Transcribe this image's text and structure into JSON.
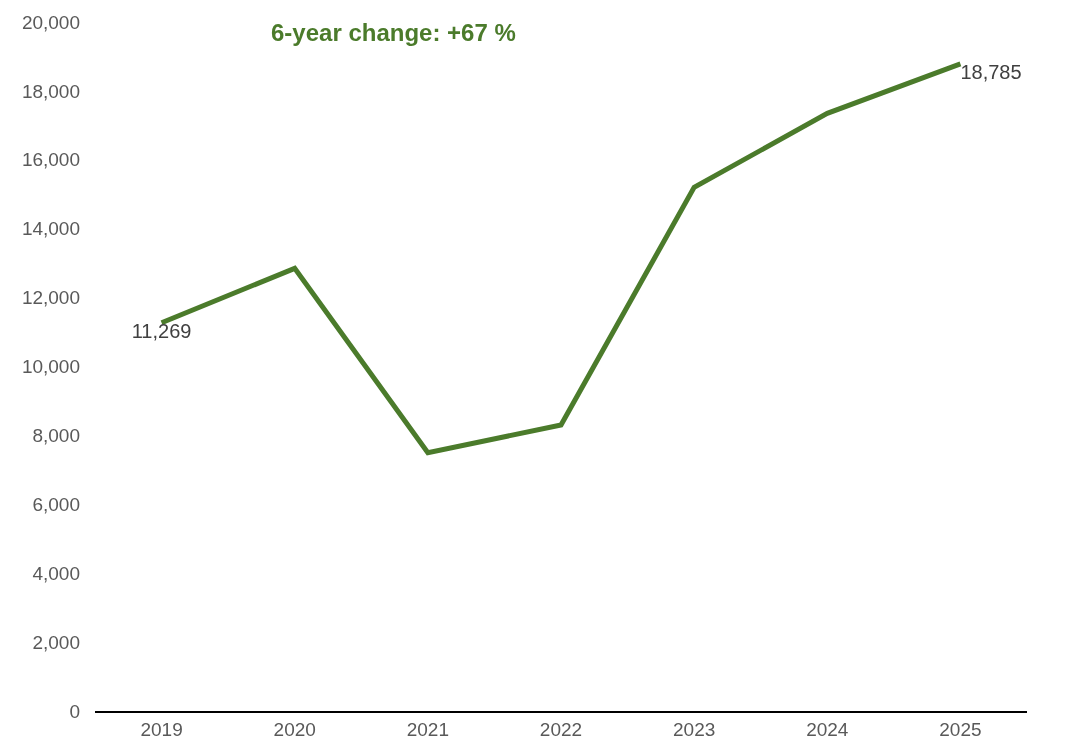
{
  "chart_data": {
    "type": "line",
    "categories": [
      "2019",
      "2020",
      "2021",
      "2022",
      "2023",
      "2024",
      "2025"
    ],
    "series": [
      {
        "color": "#4b7b2b",
        "values": [
          11269,
          12850,
          7500,
          8300,
          15200,
          17350,
          18785
        ],
        "value_labels": [
          "11,269",
          null,
          null,
          null,
          null,
          null,
          "18,785"
        ]
      }
    ],
    "ylim": [
      0,
      20000
    ],
    "yticks": [
      {
        "value": 0,
        "label": "0"
      },
      {
        "value": 2000,
        "label": "2,000"
      },
      {
        "value": 4000,
        "label": "4,000"
      },
      {
        "value": 6000,
        "label": "6,000"
      },
      {
        "value": 8000,
        "label": "8,000"
      },
      {
        "value": 10000,
        "label": "10,000"
      },
      {
        "value": 12000,
        "label": "12,000"
      },
      {
        "value": 14000,
        "label": "14,000"
      },
      {
        "value": 16000,
        "label": "16,000"
      },
      {
        "value": 18000,
        "label": "18,000"
      },
      {
        "value": 20000,
        "label": "20,000"
      }
    ],
    "marker": "none",
    "line_style": "solid",
    "annotations": [
      "6-year change: +67 %"
    ]
  }
}
